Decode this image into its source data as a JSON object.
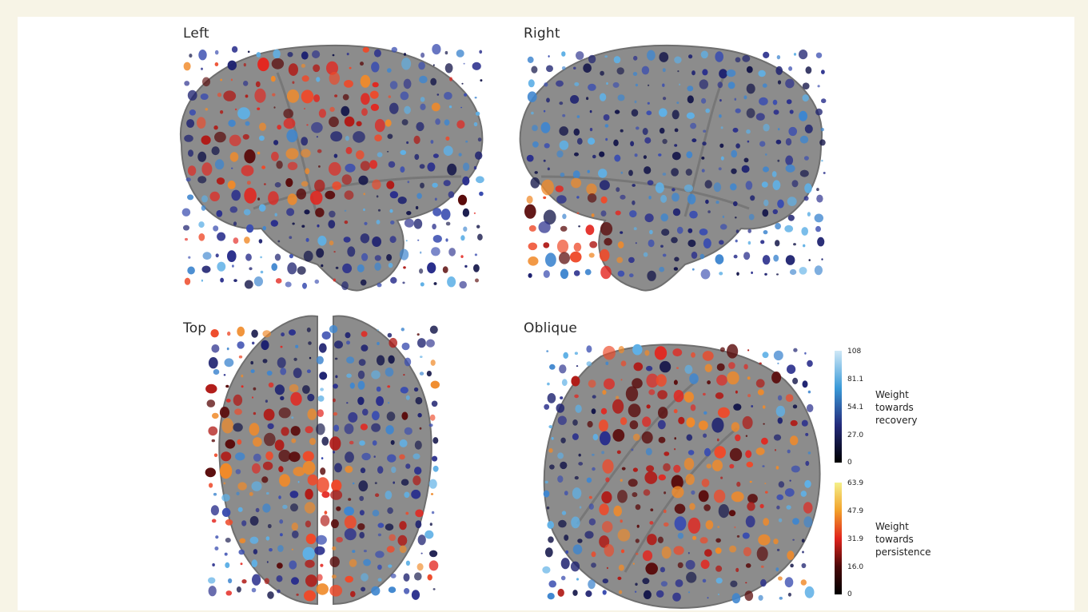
{
  "views": {
    "left": "Left",
    "right": "Right",
    "top": "Top",
    "oblique": "Oblique"
  },
  "legend": {
    "recovery": {
      "title_lines": [
        "Weight",
        "towards",
        "recovery"
      ],
      "ticks": [
        "108",
        "81.1",
        "54.1",
        "27.0",
        "0"
      ],
      "colors": [
        "#cfe8f7",
        "#3a9ad8",
        "#232a7a",
        "#000000"
      ]
    },
    "persistence": {
      "title_lines": [
        "Weight",
        "towards",
        "persistence"
      ],
      "ticks": [
        "63.9",
        "47.9",
        "31.9",
        "16.0",
        "0"
      ],
      "colors": [
        "#f4f08a",
        "#f2a12a",
        "#e0231c",
        "#4a0808",
        "#000000"
      ]
    }
  },
  "colors": {
    "brain_fill": "#8c8c8c",
    "recovery_dot": "#2a2f8c",
    "persistence_dot": "#e3261f",
    "background": "#f7f4e6"
  }
}
